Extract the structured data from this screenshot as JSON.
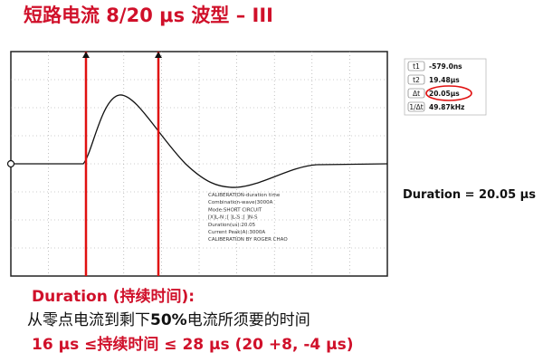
{
  "title": "短路电流 8/20 μs 波型 – III",
  "scope": {
    "readout": [
      {
        "label": "t1",
        "value": "-579.0ns"
      },
      {
        "label": "t2",
        "value": "19.48μs"
      },
      {
        "label": "Δt",
        "value": "20.05μs"
      },
      {
        "label": "1/Δt",
        "value": "49.87kHz"
      }
    ],
    "notes": [
      "CALIBERATION-duration time",
      "Combination-wave(3000A",
      "Mode:SHORT CIRCUIT",
      "[X]L-N ;[ ]L-S ;[ ]N-S",
      "Duration(us):20.05",
      "Current Peak(A):3000A",
      "CALIBERATION BY ROGER CHAO"
    ]
  },
  "result": "Duration = 20.05 μs",
  "definition": {
    "heading": "Duration (持续时间):",
    "text": [
      "从零点电流到剩下",
      "50%",
      "电流所须要的时间"
    ],
    "tolerance": "16 μs ≤持续时间 ≤ 28 μs (20 +8, -4 μs)"
  }
}
